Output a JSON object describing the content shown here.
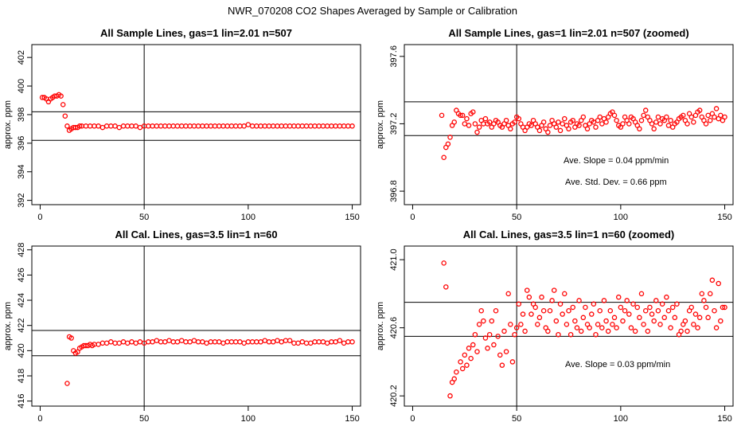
{
  "figure": {
    "title": "NWR_070208  CO2 Shapes Averaged by Sample or Calibration"
  },
  "chart_data": [
    {
      "type": "scatter",
      "title": "All Sample Lines, gas=1 lin=2.01 n=507",
      "xlabel": "",
      "ylabel": "approx. ppm",
      "xlim": [
        -4,
        154
      ],
      "ylim": [
        391.7,
        402.9
      ],
      "xticks": [
        0,
        50,
        100,
        150
      ],
      "yticks": [
        392,
        394,
        396,
        398,
        400,
        402
      ],
      "xtick_labels": [
        "0",
        "50",
        "100",
        "150"
      ],
      "ytick_labels": [
        "392",
        "394",
        "396",
        "398",
        "400",
        "402"
      ],
      "hlines": [
        396.2,
        398.2
      ],
      "vlines": [
        50
      ],
      "marker_color": "#ff0000",
      "annotations": [],
      "points": {
        "x": [
          1,
          2,
          3,
          4,
          5,
          6,
          7,
          8,
          9,
          10,
          11,
          12,
          13,
          14,
          15,
          16,
          17,
          18,
          19,
          20,
          22,
          24,
          26,
          28,
          30,
          32,
          34,
          36,
          38,
          40,
          42,
          44,
          46,
          48,
          50,
          52,
          54,
          56,
          58,
          60,
          62,
          64,
          66,
          68,
          70,
          72,
          74,
          76,
          78,
          80,
          82,
          84,
          86,
          88,
          90,
          92,
          94,
          96,
          98,
          100,
          102,
          104,
          106,
          108,
          110,
          112,
          114,
          116,
          118,
          120,
          122,
          124,
          126,
          128,
          130,
          132,
          134,
          136,
          138,
          140,
          142,
          144,
          146,
          148,
          150
        ],
        "y": [
          399.2,
          399.2,
          399.1,
          398.9,
          399.1,
          399.2,
          399.3,
          399.3,
          399.4,
          399.3,
          398.7,
          397.9,
          397.2,
          396.9,
          397.0,
          397.1,
          397.1,
          397.1,
          397.2,
          397.2,
          397.2,
          397.2,
          397.2,
          397.2,
          397.1,
          397.2,
          397.2,
          397.2,
          397.1,
          397.2,
          397.2,
          397.2,
          397.2,
          397.1,
          397.2,
          397.2,
          397.2,
          397.2,
          397.2,
          397.2,
          397.2,
          397.2,
          397.2,
          397.2,
          397.2,
          397.2,
          397.2,
          397.2,
          397.2,
          397.2,
          397.2,
          397.2,
          397.2,
          397.2,
          397.2,
          397.2,
          397.2,
          397.2,
          397.2,
          397.3,
          397.2,
          397.2,
          397.2,
          397.2,
          397.2,
          397.2,
          397.2,
          397.2,
          397.2,
          397.2,
          397.2,
          397.2,
          397.2,
          397.2,
          397.2,
          397.2,
          397.2,
          397.2,
          397.2,
          397.2,
          397.2,
          397.2,
          397.2,
          397.2,
          397.2
        ]
      }
    },
    {
      "type": "scatter",
      "title": "All Sample Lines, gas=1 lin=2.01 n=507 (zoomed)",
      "xlabel": "",
      "ylabel": "approx. ppm",
      "xlim": [
        -4,
        154
      ],
      "ylim": [
        396.72,
        397.67
      ],
      "xticks": [
        0,
        50,
        100,
        150
      ],
      "yticks": [
        396.8,
        397.2,
        397.6
      ],
      "xtick_labels": [
        "0",
        "50",
        "100",
        "150"
      ],
      "ytick_labels": [
        "396.8",
        "397.2",
        "397.6"
      ],
      "hlines": [
        397.13,
        397.33
      ],
      "vlines": [
        50
      ],
      "marker_color": "#ff0000",
      "annotations": [
        "Ave. Slope =  0.04  ppm/min",
        "Ave. Std. Dev. =  0.66  ppm"
      ],
      "points": {
        "x": [
          14,
          15,
          16,
          17,
          18,
          19,
          20,
          21,
          22,
          23,
          24,
          25,
          26,
          27,
          28,
          29,
          30,
          31,
          32,
          33,
          34,
          35,
          36,
          37,
          38,
          39,
          40,
          41,
          42,
          43,
          44,
          45,
          46,
          47,
          48,
          49,
          50,
          51,
          52,
          53,
          54,
          55,
          56,
          57,
          58,
          59,
          60,
          61,
          62,
          63,
          64,
          65,
          66,
          67,
          68,
          69,
          70,
          71,
          72,
          73,
          74,
          75,
          76,
          77,
          78,
          79,
          80,
          81,
          82,
          83,
          84,
          85,
          86,
          87,
          88,
          89,
          90,
          91,
          92,
          93,
          94,
          95,
          96,
          97,
          98,
          99,
          100,
          101,
          102,
          103,
          104,
          105,
          106,
          107,
          108,
          109,
          110,
          111,
          112,
          113,
          114,
          115,
          116,
          117,
          118,
          119,
          120,
          121,
          122,
          123,
          124,
          125,
          126,
          127,
          128,
          129,
          130,
          131,
          132,
          133,
          134,
          135,
          136,
          137,
          138,
          139,
          140,
          141,
          142,
          143,
          144,
          145,
          146,
          147,
          148,
          149,
          150
        ],
        "y": [
          397.25,
          397.0,
          397.06,
          397.08,
          397.12,
          397.19,
          397.21,
          397.28,
          397.26,
          397.25,
          397.25,
          397.2,
          397.23,
          397.19,
          397.26,
          397.27,
          397.2,
          397.15,
          397.18,
          397.22,
          397.2,
          397.23,
          397.2,
          397.21,
          397.18,
          397.2,
          397.22,
          397.21,
          397.19,
          397.18,
          397.2,
          397.22,
          397.19,
          397.17,
          397.2,
          397.21,
          397.24,
          397.23,
          397.2,
          397.18,
          397.16,
          397.18,
          397.2,
          397.19,
          397.22,
          397.2,
          397.18,
          397.16,
          397.19,
          397.21,
          397.17,
          397.15,
          397.19,
          397.22,
          397.2,
          397.18,
          397.21,
          397.16,
          397.2,
          397.23,
          397.19,
          397.17,
          397.21,
          397.22,
          397.18,
          397.2,
          397.19,
          397.22,
          397.24,
          397.19,
          397.17,
          397.2,
          397.22,
          397.21,
          397.18,
          397.22,
          397.24,
          397.2,
          397.23,
          397.21,
          397.24,
          397.26,
          397.27,
          397.25,
          397.22,
          397.19,
          397.18,
          397.2,
          397.24,
          397.22,
          397.2,
          397.24,
          397.23,
          397.21,
          397.19,
          397.17,
          397.22,
          397.25,
          397.28,
          397.24,
          397.22,
          397.2,
          397.17,
          397.21,
          397.24,
          397.2,
          397.23,
          397.22,
          397.24,
          397.19,
          397.22,
          397.18,
          397.2,
          397.21,
          397.23,
          397.24,
          397.25,
          397.22,
          397.2,
          397.26,
          397.24,
          397.21,
          397.25,
          397.27,
          397.28,
          397.24,
          397.22,
          397.2,
          397.25,
          397.22,
          397.26,
          397.24,
          397.29,
          397.23,
          397.25,
          397.22,
          397.24
        ]
      }
    },
    {
      "type": "scatter",
      "title": "All Cal. Lines, gas=3.5 lin=1 n=60",
      "xlabel": "",
      "ylabel": "approx. ppm",
      "xlim": [
        -4,
        154
      ],
      "ylim": [
        415.6,
        428.3
      ],
      "xticks": [
        0,
        50,
        100,
        150
      ],
      "yticks": [
        416,
        418,
        420,
        422,
        424,
        426,
        428
      ],
      "xtick_labels": [
        "0",
        "50",
        "100",
        "150"
      ],
      "ytick_labels": [
        "416",
        "418",
        "420",
        "422",
        "424",
        "426",
        "428"
      ],
      "hlines": [
        419.6,
        421.6
      ],
      "vlines": [
        50
      ],
      "marker_color": "#ff0000",
      "annotations": [],
      "points": {
        "x": [
          13,
          14,
          15,
          16,
          17,
          18,
          19,
          20,
          21,
          22,
          23,
          24,
          25,
          26,
          28,
          30,
          32,
          34,
          36,
          38,
          40,
          42,
          44,
          46,
          48,
          50,
          52,
          54,
          56,
          58,
          60,
          62,
          64,
          66,
          68,
          70,
          72,
          74,
          76,
          78,
          80,
          82,
          84,
          86,
          88,
          90,
          92,
          94,
          96,
          98,
          100,
          102,
          104,
          106,
          108,
          110,
          112,
          114,
          116,
          118,
          120,
          122,
          124,
          126,
          128,
          130,
          132,
          134,
          136,
          138,
          140,
          142,
          144,
          146,
          148,
          150
        ],
        "y": [
          417.4,
          421.1,
          421.0,
          420.0,
          419.8,
          419.9,
          420.2,
          420.3,
          420.4,
          420.4,
          420.4,
          420.5,
          420.4,
          420.5,
          420.5,
          420.6,
          420.6,
          420.7,
          420.6,
          420.6,
          420.7,
          420.6,
          420.7,
          420.6,
          420.7,
          420.6,
          420.7,
          420.7,
          420.8,
          420.7,
          420.7,
          420.8,
          420.7,
          420.7,
          420.8,
          420.7,
          420.7,
          420.8,
          420.7,
          420.7,
          420.6,
          420.7,
          420.7,
          420.7,
          420.6,
          420.7,
          420.7,
          420.7,
          420.7,
          420.6,
          420.7,
          420.7,
          420.7,
          420.7,
          420.8,
          420.7,
          420.7,
          420.8,
          420.7,
          420.8,
          420.8,
          420.6,
          420.6,
          420.7,
          420.6,
          420.6,
          420.7,
          420.7,
          420.7,
          420.6,
          420.7,
          420.7,
          420.8,
          420.6,
          420.7,
          420.7
        ]
      }
    },
    {
      "type": "scatter",
      "title": "All Cal. Lines, gas=3.5 lin=1 n=60 (zoomed)",
      "xlabel": "",
      "ylabel": "approx. ppm",
      "xlim": [
        -4,
        154
      ],
      "ylim": [
        420.14,
        421.08
      ],
      "xticks": [
        0,
        50,
        100,
        150
      ],
      "yticks": [
        420.2,
        420.6,
        421.0
      ],
      "xtick_labels": [
        "0",
        "50",
        "100",
        "150"
      ],
      "ytick_labels": [
        "420.2",
        "420.6",
        "421.0"
      ],
      "hlines": [
        420.55,
        420.75
      ],
      "vlines": [
        50
      ],
      "marker_color": "#ff0000",
      "annotations": [
        "Ave. Slope =  0.03  ppm/min"
      ],
      "points": {
        "x": [
          15,
          16,
          18,
          19,
          20,
          21,
          23,
          24,
          25,
          26,
          27,
          28,
          29,
          30,
          31,
          32,
          33,
          34,
          35,
          36,
          37,
          38,
          39,
          40,
          41,
          42,
          43,
          44,
          45,
          46,
          47,
          48,
          49,
          50,
          51,
          52,
          53,
          54,
          55,
          56,
          57,
          58,
          59,
          60,
          61,
          62,
          63,
          64,
          65,
          66,
          67,
          68,
          69,
          70,
          71,
          72,
          73,
          74,
          75,
          76,
          77,
          78,
          79,
          80,
          81,
          82,
          83,
          84,
          85,
          86,
          87,
          88,
          89,
          90,
          91,
          92,
          93,
          94,
          95,
          96,
          97,
          98,
          99,
          100,
          101,
          102,
          103,
          104,
          105,
          106,
          107,
          108,
          109,
          110,
          111,
          112,
          113,
          114,
          115,
          116,
          117,
          118,
          119,
          120,
          121,
          122,
          123,
          124,
          125,
          126,
          127,
          128,
          129,
          130,
          131,
          132,
          133,
          134,
          135,
          136,
          137,
          138,
          139,
          140,
          141,
          142,
          143,
          144,
          145,
          146,
          147,
          148,
          149,
          150
        ],
        "y": [
          420.98,
          420.84,
          420.2,
          420.28,
          420.3,
          420.34,
          420.4,
          420.36,
          420.44,
          420.38,
          420.48,
          420.42,
          420.5,
          420.56,
          420.46,
          420.62,
          420.7,
          420.64,
          420.54,
          420.48,
          420.56,
          420.64,
          420.5,
          420.7,
          420.55,
          420.44,
          420.38,
          420.58,
          420.46,
          420.8,
          420.62,
          420.4,
          420.56,
          420.6,
          420.74,
          420.62,
          420.68,
          420.58,
          420.82,
          420.78,
          420.68,
          420.74,
          420.72,
          420.62,
          420.66,
          420.78,
          420.7,
          420.6,
          420.58,
          420.7,
          420.76,
          420.82,
          420.64,
          420.56,
          420.74,
          420.68,
          420.8,
          420.62,
          420.7,
          420.56,
          420.72,
          420.64,
          420.6,
          420.76,
          420.58,
          420.66,
          420.72,
          420.62,
          420.6,
          420.68,
          420.74,
          420.56,
          420.62,
          420.7,
          420.6,
          420.76,
          420.64,
          420.58,
          420.7,
          420.62,
          420.66,
          420.6,
          420.78,
          420.72,
          420.64,
          420.7,
          420.76,
          420.68,
          420.6,
          420.74,
          420.58,
          420.72,
          420.66,
          420.8,
          420.62,
          420.7,
          420.58,
          420.72,
          420.68,
          420.64,
          420.76,
          420.7,
          420.62,
          420.74,
          420.66,
          420.78,
          420.7,
          420.6,
          420.72,
          420.66,
          420.74,
          420.56,
          420.58,
          420.62,
          420.64,
          420.58,
          420.7,
          420.72,
          420.62,
          420.68,
          420.6,
          420.66,
          420.8,
          420.76,
          420.72,
          420.66,
          420.8,
          420.88,
          420.7,
          420.6,
          420.86,
          420.64,
          420.72,
          420.72
        ]
      }
    }
  ]
}
